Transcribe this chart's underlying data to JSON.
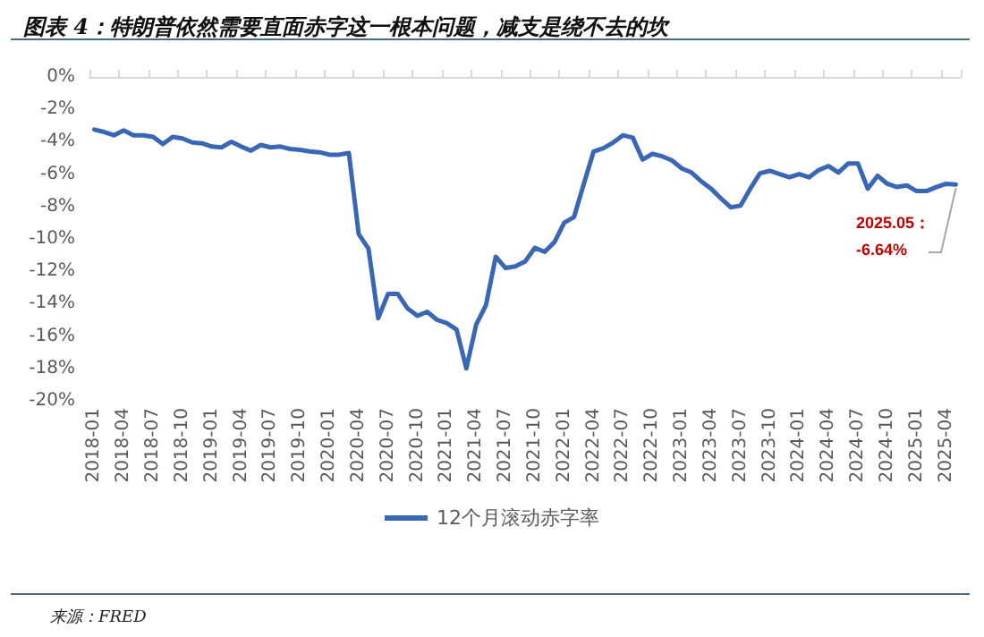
{
  "chart_data": {
    "type": "line",
    "title": "图表 4：特朗普依然需要直面赤字这一根本问题，减支是绕不去的坎",
    "categories": [
      "2018-01",
      null,
      null,
      "2018-04",
      null,
      null,
      "2018-07",
      null,
      null,
      "2018-10",
      null,
      null,
      "2019-01",
      null,
      null,
      "2019-04",
      null,
      null,
      "2019-07",
      null,
      null,
      "2019-10",
      null,
      null,
      "2020-01",
      null,
      null,
      "2020-04",
      null,
      null,
      "2020-07",
      null,
      null,
      "2020-10",
      null,
      null,
      "2021-01",
      null,
      null,
      "2021-04",
      null,
      null,
      "2021-07",
      null,
      null,
      "2021-10",
      null,
      null,
      "2022-01",
      null,
      null,
      "2022-04",
      null,
      null,
      "2022-07",
      null,
      null,
      "2022-10",
      null,
      null,
      "2023-01",
      null,
      null,
      "2023-04",
      null,
      null,
      "2023-07",
      null,
      null,
      "2023-10",
      null,
      null,
      "2024-01",
      null,
      null,
      "2024-04",
      null,
      null,
      "2024-07",
      null,
      null,
      "2024-10",
      null,
      null,
      "2025-01",
      null,
      null,
      "2025-04",
      null
    ],
    "series": [
      {
        "name": "12个月滚动赤字率",
        "color": "#3a67b5",
        "values": [
          -3.25,
          -3.4,
          -3.6,
          -3.3,
          -3.6,
          -3.6,
          -3.7,
          -4.15,
          -3.7,
          -3.8,
          -4.05,
          -4.1,
          -4.3,
          -4.35,
          -4.0,
          -4.3,
          -4.55,
          -4.2,
          -4.35,
          -4.3,
          -4.45,
          -4.5,
          -4.6,
          -4.65,
          -4.8,
          -4.8,
          -4.7,
          -9.7,
          -10.6,
          -14.9,
          -13.4,
          -13.4,
          -14.3,
          -14.75,
          -14.5,
          -15.0,
          -15.2,
          -15.6,
          -18.0,
          -15.3,
          -14.1,
          -11.1,
          -11.8,
          -11.7,
          -11.4,
          -10.55,
          -10.8,
          -10.2,
          -9.0,
          -8.65,
          -6.6,
          -4.6,
          -4.4,
          -4.05,
          -3.6,
          -3.75,
          -5.1,
          -4.75,
          -4.9,
          -5.15,
          -5.65,
          -5.9,
          -6.45,
          -6.9,
          -7.5,
          -8.05,
          -7.95,
          -6.9,
          -5.95,
          -5.8,
          -6.0,
          -6.2,
          -6.0,
          -6.2,
          -5.75,
          -5.5,
          -5.9,
          -5.35,
          -5.35,
          -6.9,
          -6.1,
          -6.6,
          -6.8,
          -6.7,
          -7.05,
          -7.05,
          -6.8,
          -6.6,
          -6.64
        ]
      }
    ],
    "ylim": [
      -20,
      0
    ],
    "yticks": [
      {
        "value": 0,
        "label": "0%"
      },
      {
        "value": -2,
        "label": "-2%"
      },
      {
        "value": -4,
        "label": "-4%"
      },
      {
        "value": -6,
        "label": "-6%"
      },
      {
        "value": -8,
        "label": "-8%"
      },
      {
        "value": -10,
        "label": "-10%"
      },
      {
        "value": -12,
        "label": "-12%"
      },
      {
        "value": -14,
        "label": "-14%"
      },
      {
        "value": -16,
        "label": "-16%"
      },
      {
        "value": -18,
        "label": "-18%"
      },
      {
        "value": -20,
        "label": "-20%"
      }
    ],
    "grid": false,
    "legend": "bottom",
    "marker": "none",
    "line_style": "solid",
    "annotations": [
      {
        "text": "2025.05：\n-6.64%",
        "y": -6.64
      },
      "来源：FRED"
    ]
  }
}
